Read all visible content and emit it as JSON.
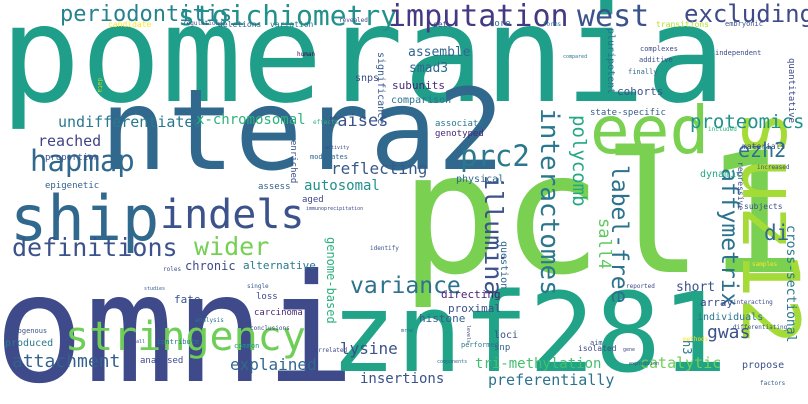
{
  "words": [
    {
      "text": "pomerania",
      "color": "#1f9e89"
    },
    {
      "text": "omni",
      "color": "#3e4a89"
    },
    {
      "text": "pcl1",
      "color": "#7ad151"
    },
    {
      "text": "ntera2",
      "color": "#31688e"
    },
    {
      "text": "znf281",
      "color": "#20a386"
    },
    {
      "text": "suz12",
      "color": "#a5db36"
    },
    {
      "text": "eed",
      "color": "#7ad151"
    },
    {
      "text": "ship",
      "color": "#31688e"
    },
    {
      "text": "indels",
      "color": "#3b528b"
    },
    {
      "text": "stringency",
      "color": "#6ece58"
    },
    {
      "text": "periodontitis",
      "color": "#26828e"
    },
    {
      "text": "stoichiometry",
      "color": "#21918c"
    },
    {
      "text": "imputation",
      "color": "#443983"
    },
    {
      "text": "west",
      "color": "#3b528b"
    },
    {
      "text": "excluding",
      "color": "#3e4a89"
    },
    {
      "text": "hapmap",
      "color": "#31688e"
    },
    {
      "text": "definitions",
      "color": "#3b528b"
    },
    {
      "text": "prc2",
      "color": "#2a788e"
    },
    {
      "text": "wider",
      "color": "#75d054"
    },
    {
      "text": "variance",
      "color": "#2c728e"
    },
    {
      "text": "interactomes",
      "color": "#2a788e"
    },
    {
      "text": "illumina",
      "color": "#3b528b"
    },
    {
      "text": "label-free",
      "color": "#2c728e"
    },
    {
      "text": "affymetrix",
      "color": "#2c728e"
    },
    {
      "text": "proteomics",
      "color": "#21918c"
    },
    {
      "text": "ezh2",
      "color": "#2c728e"
    },
    {
      "text": "polycomb",
      "color": "#22a884"
    },
    {
      "text": "sall4",
      "color": "#5ec962"
    },
    {
      "text": "di",
      "color": "#31688e"
    },
    {
      "text": "gwas",
      "color": "#3b528b"
    },
    {
      "text": "attachment",
      "color": "#35608d"
    },
    {
      "text": "undifferentiated",
      "color": "#2a788e"
    },
    {
      "text": "x-chromosomal",
      "color": "#2db27d"
    },
    {
      "text": "raises",
      "color": "#3b528b"
    },
    {
      "text": "reached",
      "color": "#414487"
    },
    {
      "text": "reflecting",
      "color": "#38598c"
    },
    {
      "text": "autosomal",
      "color": "#21918c"
    },
    {
      "text": "genome-based",
      "color": "#2db27d"
    },
    {
      "text": "lysine",
      "color": "#3b528b"
    },
    {
      "text": "explained",
      "color": "#31688e"
    },
    {
      "text": "insertions",
      "color": "#3b528b"
    },
    {
      "text": "tri-methylation",
      "color": "#44bf70"
    },
    {
      "text": "catalytic",
      "color": "#6ece58"
    },
    {
      "text": "preferentially",
      "color": "#2c728e"
    },
    {
      "text": "cross-sectional",
      "color": "#2a788e"
    },
    {
      "text": "assemble",
      "color": "#31688e"
    },
    {
      "text": "smad3",
      "color": "#31688e"
    },
    {
      "text": "subunits",
      "color": "#482878"
    },
    {
      "text": "comparison",
      "color": "#2c728e"
    },
    {
      "text": "significance",
      "color": "#38598c"
    },
    {
      "text": "snps",
      "color": "#3e4a89"
    },
    {
      "text": "cohorts",
      "color": "#3b528b"
    },
    {
      "text": "pluripotent",
      "color": "#2c728e"
    },
    {
      "text": "quantitative",
      "color": "#3e4a89"
    },
    {
      "text": "state-specific",
      "color": "#35608d"
    },
    {
      "text": "associate",
      "color": "#2a788e"
    },
    {
      "text": "genotyped",
      "color": "#482878"
    },
    {
      "text": "proportion",
      "color": "#3b528b"
    },
    {
      "text": "enriched",
      "color": "#3b528b"
    },
    {
      "text": "physical",
      "color": "#31688e"
    },
    {
      "text": "dynamic",
      "color": "#22a884"
    },
    {
      "text": "materials",
      "color": "#3e4a89"
    },
    {
      "text": "repressive",
      "color": "#3e4a89"
    },
    {
      "text": "epigenetic",
      "color": "#35608d"
    },
    {
      "text": "assess",
      "color": "#35608d"
    },
    {
      "text": "aged",
      "color": "#3e4a89"
    },
    {
      "text": "subjects",
      "color": "#3b528b"
    },
    {
      "text": "chronic",
      "color": "#3e4a89"
    },
    {
      "text": "alternative",
      "color": "#2a788e"
    },
    {
      "text": "question",
      "color": "#31688e"
    },
    {
      "text": "short",
      "color": "#3b528b"
    },
    {
      "text": "directing",
      "color": "#481f70"
    },
    {
      "text": "proximal",
      "color": "#3b528b"
    },
    {
      "text": "array",
      "color": "#3e4a89"
    },
    {
      "text": "histone",
      "color": "#35608d"
    },
    {
      "text": "individuals",
      "color": "#2a788e"
    },
    {
      "text": "fate",
      "color": "#3b528b"
    },
    {
      "text": "loss",
      "color": "#3e4a89"
    },
    {
      "text": "carcinoma",
      "color": "#482878"
    },
    {
      "text": "produced",
      "color": "#2a788e"
    },
    {
      "text": "loci",
      "color": "#3b528b"
    },
    {
      "text": "snp",
      "color": "#35608d"
    },
    {
      "text": "analysed",
      "color": "#3e4a89"
    },
    {
      "text": "endogenous",
      "color": "#3b528b"
    },
    {
      "text": "performed",
      "color": "#2a788e"
    },
    {
      "text": "isolated",
      "color": "#3e4a89"
    },
    {
      "text": "aim",
      "color": "#3b528b"
    },
    {
      "text": "propose",
      "color": "#3b528b"
    },
    {
      "text": "h3",
      "color": "#2a788e"
    },
    {
      "text": "candidate",
      "color": "#fde725"
    },
    {
      "text": "deletions",
      "color": "#35608d"
    },
    {
      "text": "variation",
      "color": "#2a788e"
    },
    {
      "text": "set",
      "color": "#3e4a89"
    },
    {
      "text": "core",
      "color": "#31688e"
    },
    {
      "text": "transitions",
      "color": "#b5de2b"
    },
    {
      "text": "embryonic",
      "color": "#3b528b"
    },
    {
      "text": "forms",
      "color": "#2a788e"
    },
    {
      "text": "regulation",
      "color": "#3b528b"
    },
    {
      "text": "revealed",
      "color": "#3e4a89"
    },
    {
      "text": "complexes",
      "color": "#3e4a89"
    },
    {
      "text": "additive",
      "color": "#3b528b"
    },
    {
      "text": "finally",
      "color": "#31688e"
    },
    {
      "text": "independent",
      "color": "#3e4a89"
    },
    {
      "text": "compared",
      "color": "#2a788e"
    },
    {
      "text": "human",
      "color": "#440154"
    },
    {
      "text": "data",
      "color": "#c2df23"
    },
    {
      "text": "effects",
      "color": "#2db27d"
    },
    {
      "text": "activity",
      "color": "#3e4a89"
    },
    {
      "text": "modulates",
      "color": "#31688e"
    },
    {
      "text": "immunoprecipitation",
      "color": "#3e4a89"
    },
    {
      "text": "roles",
      "color": "#3b528b"
    },
    {
      "text": "single",
      "color": "#38598c"
    },
    {
      "text": "studies",
      "color": "#35608d"
    },
    {
      "text": "analysis",
      "color": "#2c728e"
    },
    {
      "text": "conclusions",
      "color": "#3e4a89"
    },
    {
      "text": "identify",
      "color": "#3b528b"
    },
    {
      "text": "mrna",
      "color": "#31688e"
    },
    {
      "text": "levels",
      "color": "#3e4a89"
    },
    {
      "text": "common",
      "color": "#21918c"
    },
    {
      "text": "correlated",
      "color": "#3e4a89"
    },
    {
      "text": "components",
      "color": "#31688e"
    },
    {
      "text": "call",
      "color": "#3b528b"
    },
    {
      "text": "contribute",
      "color": "#2a788e"
    },
    {
      "text": "gene",
      "color": "#3e4a89"
    },
    {
      "text": "expression",
      "color": "#3b528b"
    },
    {
      "text": "methods",
      "color": "#fde725"
    },
    {
      "text": "factors",
      "color": "#35608d"
    },
    {
      "text": "reported",
      "color": "#3e4a89"
    },
    {
      "text": "interacting",
      "color": "#3e4a89"
    },
    {
      "text": "differentiating",
      "color": "#3b528b"
    },
    {
      "text": "samples",
      "color": "#fde725"
    },
    {
      "text": "included",
      "color": "#2db27d"
    },
    {
      "text": "increased",
      "color": "#3e4a89"
    }
  ]
}
